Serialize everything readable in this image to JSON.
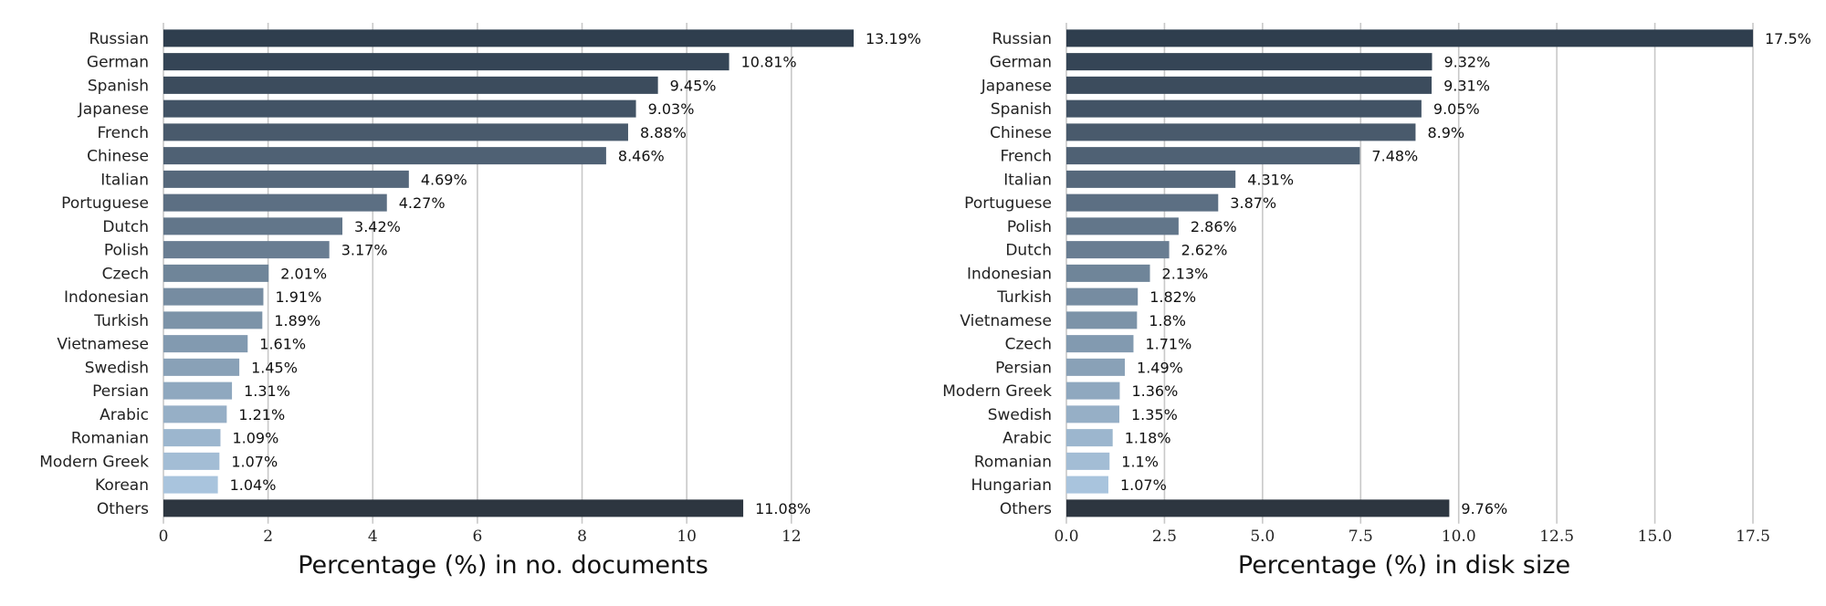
{
  "chart_data": [
    {
      "type": "bar",
      "orientation": "horizontal",
      "xlabel": "Percentage (%) in no. documents",
      "xlim": [
        0,
        13.19
      ],
      "xticks": [
        0,
        2,
        4,
        6,
        8,
        10,
        12
      ],
      "xtick_labels": [
        "0",
        "2",
        "4",
        "6",
        "8",
        "10",
        "12"
      ],
      "grid": "vertical",
      "categories": [
        "Russian",
        "German",
        "Spanish",
        "Japanese",
        "French",
        "Chinese",
        "Italian",
        "Portuguese",
        "Dutch",
        "Polish",
        "Czech",
        "Indonesian",
        "Turkish",
        "Vietnamese",
        "Swedish",
        "Persian",
        "Arabic",
        "Romanian",
        "Modern Greek",
        "Korean",
        "Others"
      ],
      "values": [
        13.19,
        10.81,
        9.45,
        9.03,
        8.88,
        8.46,
        4.69,
        4.27,
        3.42,
        3.17,
        2.01,
        1.91,
        1.89,
        1.61,
        1.45,
        1.31,
        1.21,
        1.09,
        1.07,
        1.04,
        11.08
      ],
      "value_labels": [
        "13.19%",
        "10.81%",
        "9.45%",
        "9.03%",
        "8.88%",
        "8.46%",
        "4.69%",
        "4.27%",
        "3.42%",
        "3.17%",
        "2.01%",
        "1.91%",
        "1.89%",
        "1.61%",
        "1.45%",
        "1.31%",
        "1.21%",
        "1.09%",
        "1.07%",
        "1.04%",
        "11.08%"
      ],
      "colors": {
        "gradient_start": "#2f3e4e",
        "gradient_end": "#a9c4dd",
        "others": "#2d3640"
      }
    },
    {
      "type": "bar",
      "orientation": "horizontal",
      "xlabel": "Percentage (%) in disk size",
      "xlim": [
        0,
        17.5
      ],
      "xticks": [
        0,
        2.5,
        5,
        7.5,
        10,
        12.5,
        15,
        17.5
      ],
      "xtick_labels": [
        "0.0",
        "2.5",
        "5.0",
        "7.5",
        "10.0",
        "12.5",
        "15.0",
        "17.5"
      ],
      "grid": "vertical",
      "categories": [
        "Russian",
        "German",
        "Japanese",
        "Spanish",
        "Chinese",
        "French",
        "Italian",
        "Portuguese",
        "Polish",
        "Dutch",
        "Indonesian",
        "Turkish",
        "Vietnamese",
        "Czech",
        "Persian",
        "Modern Greek",
        "Swedish",
        "Arabic",
        "Romanian",
        "Hungarian",
        "Others"
      ],
      "values": [
        17.5,
        9.32,
        9.31,
        9.05,
        8.9,
        7.48,
        4.31,
        3.87,
        2.86,
        2.62,
        2.13,
        1.82,
        1.8,
        1.71,
        1.49,
        1.36,
        1.35,
        1.18,
        1.1,
        1.07,
        9.76
      ],
      "value_labels": [
        "17.5%",
        "9.32%",
        "9.31%",
        "9.05%",
        "8.9%",
        "7.48%",
        "4.31%",
        "3.87%",
        "2.86%",
        "2.62%",
        "2.13%",
        "1.82%",
        "1.8%",
        "1.71%",
        "1.49%",
        "1.36%",
        "1.35%",
        "1.18%",
        "1.1%",
        "1.07%",
        "9.76%"
      ],
      "colors": {
        "gradient_start": "#2f3e4e",
        "gradient_end": "#a9c4dd",
        "others": "#2d3640"
      }
    }
  ]
}
